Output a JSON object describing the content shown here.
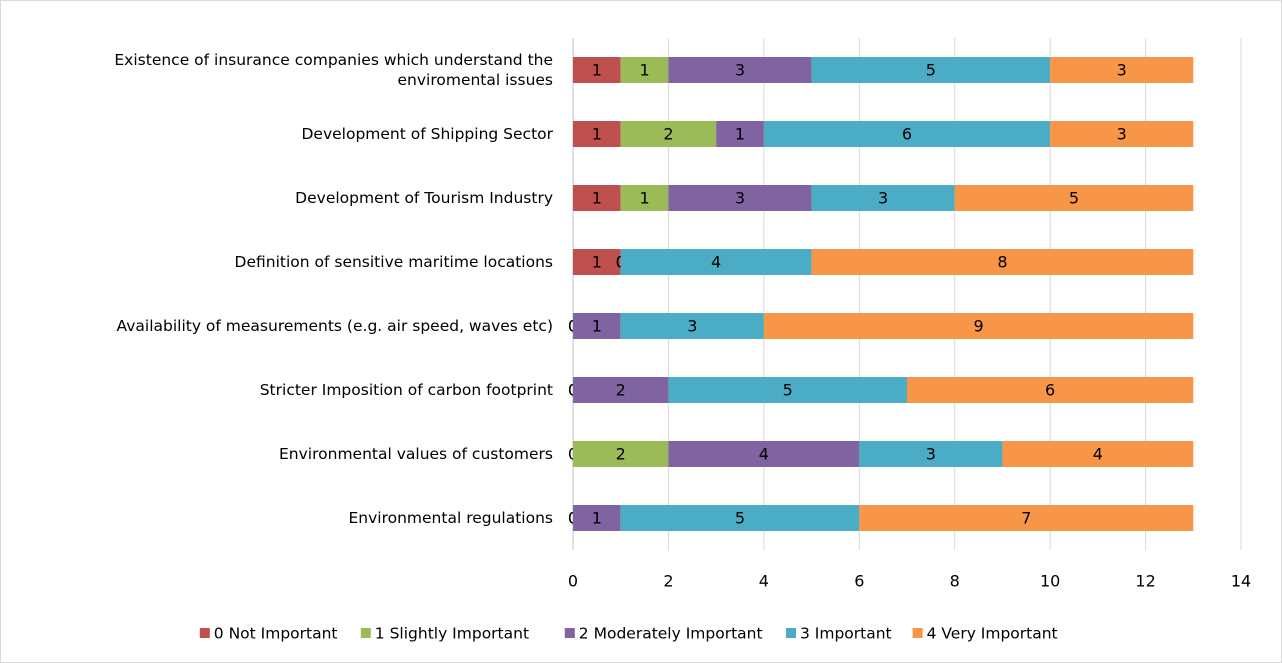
{
  "chart_data": {
    "type": "stacked_bar_horizontal",
    "categories": [
      "Existence of insurance companies which understand the enviromental issues",
      "Development of Shipping Sector",
      "Development of Tourism Industry",
      "Definition of sensitive maritime locations",
      "Availability of measurements (e.g. air speed, waves etc)",
      "Stricter Imposition of carbon footprint",
      "Environmental values of customers",
      "Environmental regulations"
    ],
    "series": [
      {
        "name": "0 Not Important",
        "color": "#c0504d",
        "values": [
          1,
          1,
          1,
          1,
          0,
          0,
          0,
          0
        ]
      },
      {
        "name": "1 Slightly Important",
        "color": "#9bbb59",
        "values": [
          1,
          2,
          1,
          0,
          0,
          0,
          2,
          0
        ]
      },
      {
        "name": "2 Moderately Important",
        "color": "#8064a2",
        "values": [
          3,
          1,
          3,
          0,
          1,
          2,
          4,
          1
        ]
      },
      {
        "name": "3 Important",
        "color": "#4bacc6",
        "values": [
          5,
          6,
          3,
          4,
          3,
          5,
          3,
          5
        ]
      },
      {
        "name": "4 Very Important",
        "color": "#f79646",
        "values": [
          3,
          3,
          5,
          8,
          9,
          6,
          4,
          7
        ]
      }
    ],
    "xlim": [
      0,
      14
    ],
    "xticks": [
      0,
      2,
      4,
      6,
      8,
      10,
      12,
      14
    ],
    "grid": true,
    "legend": "bottom"
  }
}
